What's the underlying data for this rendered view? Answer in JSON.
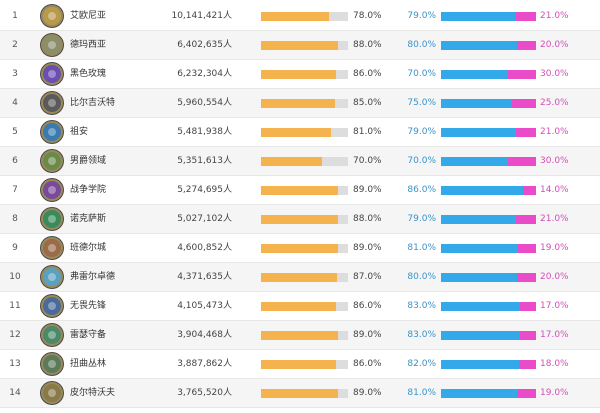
{
  "colors": {
    "progress_fill": "#f5b34d",
    "progress_track": "#dddddd",
    "share_blue": "#33a9ea",
    "share_pink": "#ea4bc8"
  },
  "rows": [
    {
      "rank": "1",
      "name": "艾欧尼亚",
      "population": "10,141,421人",
      "pct1": "78.0%",
      "pct1_value": 78,
      "pct2": "79.0%",
      "pct2_value": 79,
      "pct3": "21.0%",
      "emblem_color": "#b89a4a"
    },
    {
      "rank": "2",
      "name": "德玛西亚",
      "population": "6,402,635人",
      "pct1": "88.0%",
      "pct1_value": 88,
      "pct2": "80.0%",
      "pct2_value": 80,
      "pct3": "20.0%",
      "emblem_color": "#8a8f6a"
    },
    {
      "rank": "3",
      "name": "黑色玫瑰",
      "population": "6,232,304人",
      "pct1": "86.0%",
      "pct1_value": 86,
      "pct2": "70.0%",
      "pct2_value": 70,
      "pct3": "30.0%",
      "emblem_color": "#6a4fb0"
    },
    {
      "rank": "4",
      "name": "比尔吉沃特",
      "population": "5,960,554人",
      "pct1": "85.0%",
      "pct1_value": 85,
      "pct2": "75.0%",
      "pct2_value": 75,
      "pct3": "25.0%",
      "emblem_color": "#5a5a5a"
    },
    {
      "rank": "5",
      "name": "祖安",
      "population": "5,481,938人",
      "pct1": "81.0%",
      "pct1_value": 81,
      "pct2": "79.0%",
      "pct2_value": 79,
      "pct3": "21.0%",
      "emblem_color": "#3a7ab0"
    },
    {
      "rank": "6",
      "name": "男爵领域",
      "population": "5,351,613人",
      "pct1": "70.0%",
      "pct1_value": 70,
      "pct2": "70.0%",
      "pct2_value": 70,
      "pct3": "30.0%",
      "emblem_color": "#6a8a4a"
    },
    {
      "rank": "7",
      "name": "战争学院",
      "population": "5,274,695人",
      "pct1": "89.0%",
      "pct1_value": 89,
      "pct2": "86.0%",
      "pct2_value": 86,
      "pct3": "14.0%",
      "emblem_color": "#7a4a9a"
    },
    {
      "rank": "8",
      "name": "诺克萨斯",
      "population": "5,027,102人",
      "pct1": "88.0%",
      "pct1_value": 88,
      "pct2": "79.0%",
      "pct2_value": 79,
      "pct3": "21.0%",
      "emblem_color": "#3a8a5a"
    },
    {
      "rank": "9",
      "name": "班德尔城",
      "population": "4,600,852人",
      "pct1": "89.0%",
      "pct1_value": 89,
      "pct2": "81.0%",
      "pct2_value": 81,
      "pct3": "19.0%",
      "emblem_color": "#9a6a4a"
    },
    {
      "rank": "10",
      "name": "弗雷尔卓德",
      "population": "4,371,635人",
      "pct1": "87.0%",
      "pct1_value": 87,
      "pct2": "80.0%",
      "pct2_value": 80,
      "pct3": "20.0%",
      "emblem_color": "#5aa0c0"
    },
    {
      "rank": "11",
      "name": "无畏先锋",
      "population": "4,105,473人",
      "pct1": "86.0%",
      "pct1_value": 86,
      "pct2": "83.0%",
      "pct2_value": 83,
      "pct3": "17.0%",
      "emblem_color": "#4a6a9a"
    },
    {
      "rank": "12",
      "name": "雷瑟守备",
      "population": "3,904,468人",
      "pct1": "89.0%",
      "pct1_value": 89,
      "pct2": "83.0%",
      "pct2_value": 83,
      "pct3": "17.0%",
      "emblem_color": "#4a8a6a"
    },
    {
      "rank": "13",
      "name": "扭曲丛林",
      "population": "3,887,862人",
      "pct1": "86.0%",
      "pct1_value": 86,
      "pct2": "82.0%",
      "pct2_value": 82,
      "pct3": "18.0%",
      "emblem_color": "#5a7a5a"
    },
    {
      "rank": "14",
      "name": "皮尔特沃夫",
      "population": "3,765,520人",
      "pct1": "89.0%",
      "pct1_value": 89,
      "pct2": "81.0%",
      "pct2_value": 81,
      "pct3": "19.0%",
      "emblem_color": "#8a7a4a"
    }
  ]
}
